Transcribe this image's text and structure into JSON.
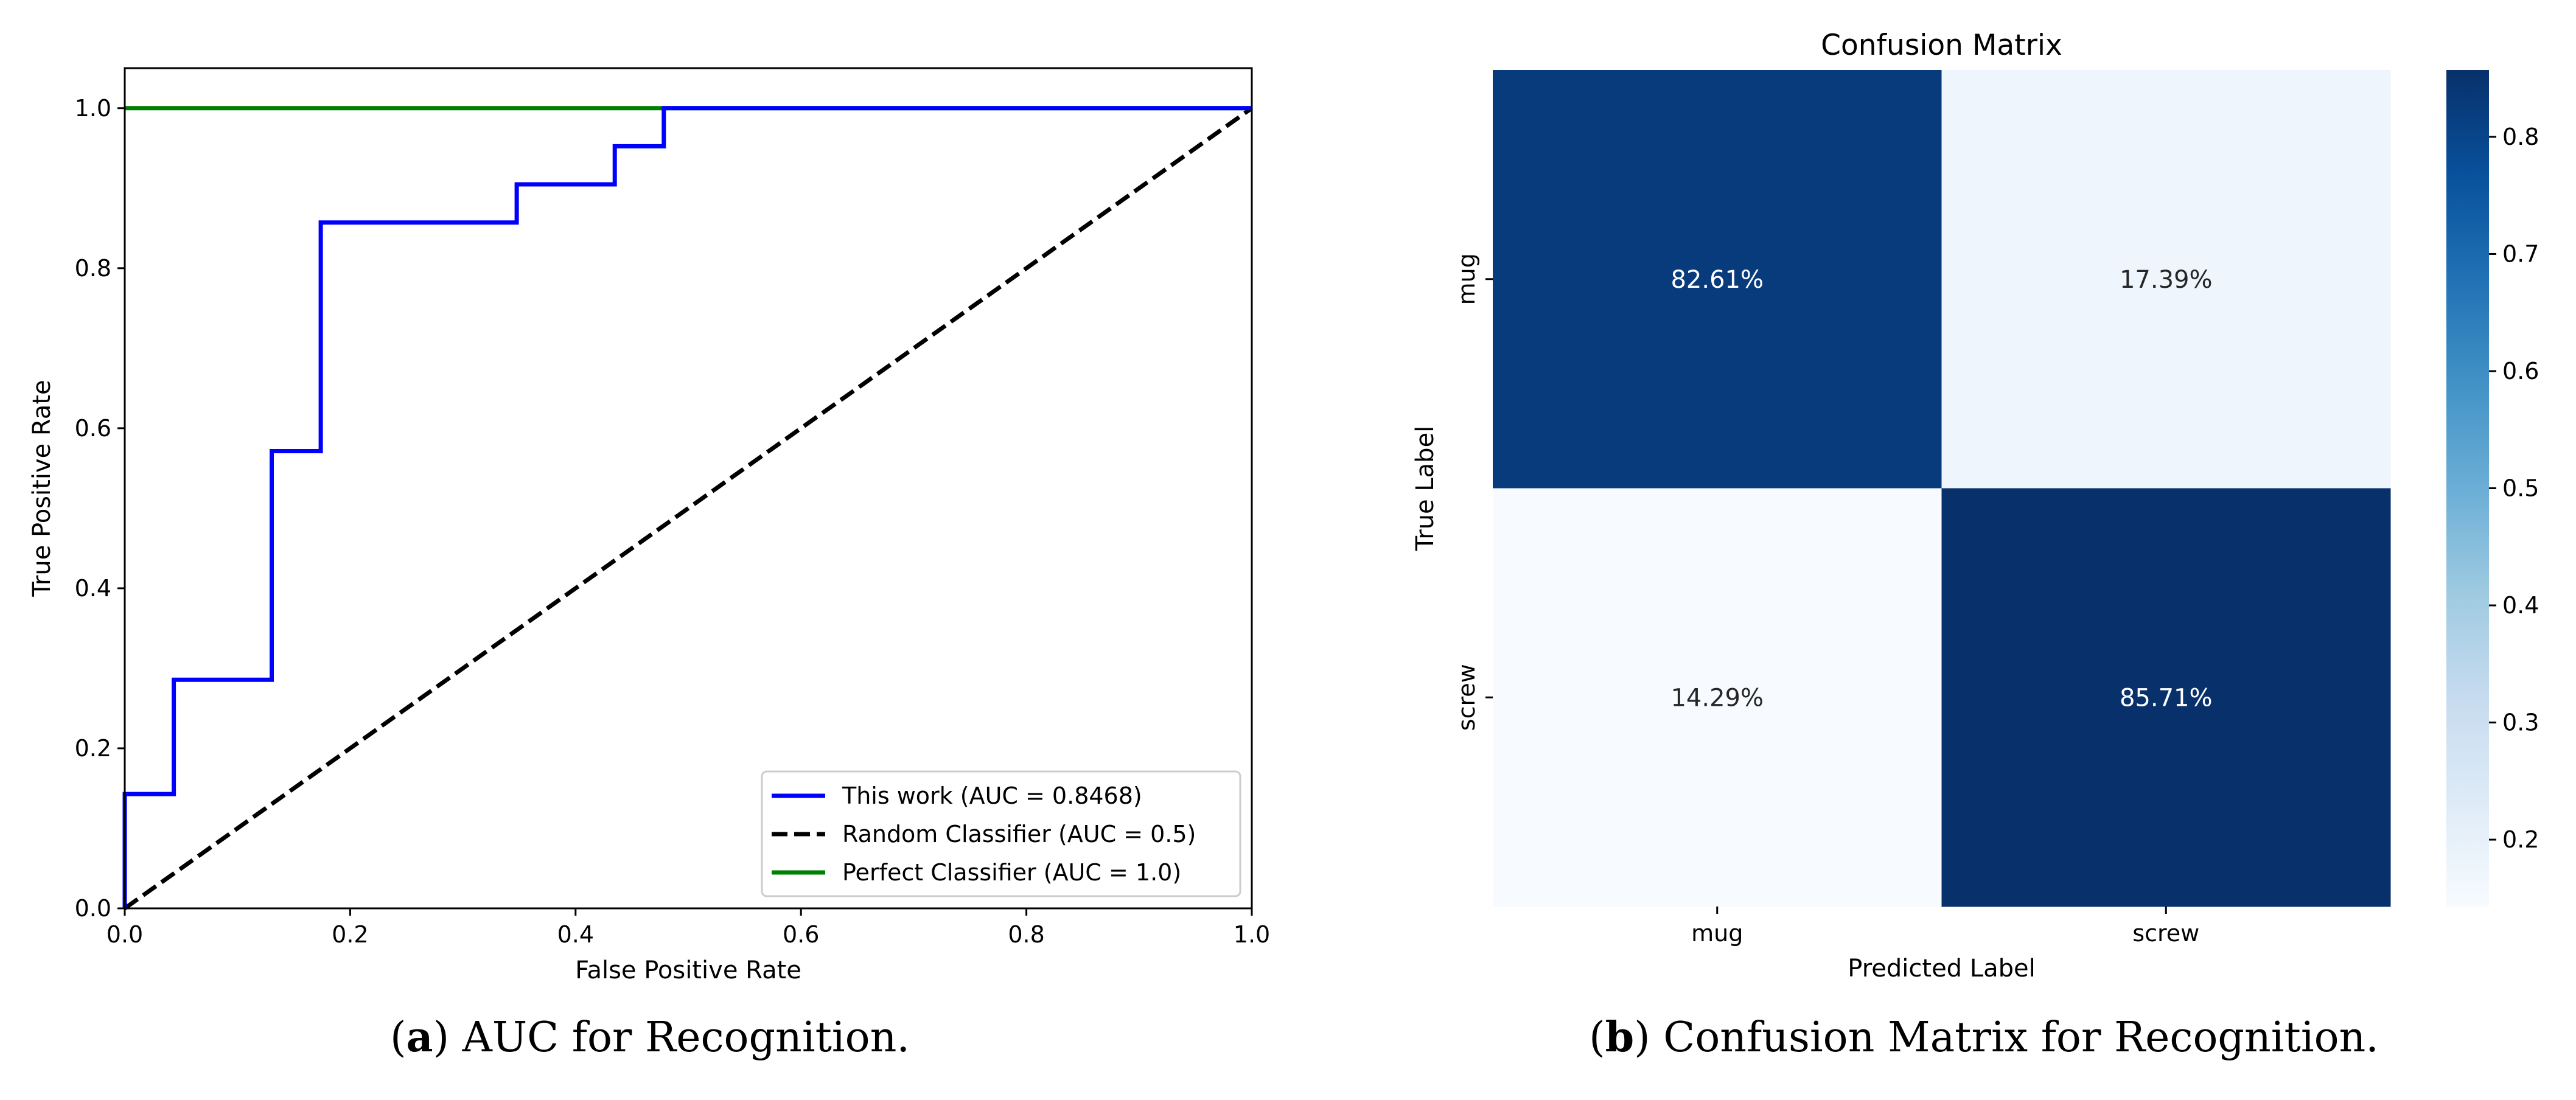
{
  "captions": {
    "a_letter": "a",
    "a_text": " AUC for Recognition.",
    "b_letter": "b",
    "b_text": " Confusion Matrix for Recognition."
  },
  "chart_data": [
    {
      "type": "line",
      "title": "",
      "xlabel": "False Positive Rate",
      "ylabel": "True Positive Rate",
      "xlim": [
        0.0,
        1.0
      ],
      "ylim": [
        0.0,
        1.05
      ],
      "xticks": [
        0.0,
        0.2,
        0.4,
        0.6,
        0.8,
        1.0
      ],
      "yticks": [
        0.0,
        0.2,
        0.4,
        0.6,
        0.8,
        1.0
      ],
      "xtick_labels": [
        "0.0",
        "0.2",
        "0.4",
        "0.6",
        "0.8",
        "1.0"
      ],
      "ytick_labels": [
        "0.0",
        "0.2",
        "0.4",
        "0.6",
        "0.8",
        "1.0"
      ],
      "grid": false,
      "legend_position": "lower-right",
      "series": [
        {
          "name": "This work (AUC = 0.8468)",
          "color": "#0000ff",
          "style": "solid",
          "step": true,
          "x": [
            0.0,
            0.0,
            0.0435,
            0.0435,
            0.1304,
            0.1304,
            0.1739,
            0.1739,
            0.3478,
            0.3478,
            0.4348,
            0.4348,
            0.4783,
            0.4783,
            1.0
          ],
          "y": [
            0.0,
            0.1429,
            0.1429,
            0.2857,
            0.2857,
            0.5714,
            0.5714,
            0.8571,
            0.8571,
            0.9048,
            0.9048,
            0.9524,
            0.9524,
            1.0,
            1.0
          ]
        },
        {
          "name": "Random Classifier (AUC = 0.5)",
          "color": "#000000",
          "style": "dashed",
          "x": [
            0.0,
            1.0
          ],
          "y": [
            0.0,
            1.0
          ]
        },
        {
          "name": "Perfect Classifier (AUC = 1.0)",
          "color": "#008000",
          "style": "solid",
          "x": [
            0.0,
            1.0
          ],
          "y": [
            1.0,
            1.0
          ]
        }
      ]
    },
    {
      "type": "heatmap",
      "title": "Confusion Matrix",
      "xlabel": "Predicted Label",
      "ylabel": "True Label",
      "x_categories": [
        "mug",
        "screw"
      ],
      "y_categories": [
        "mug",
        "screw"
      ],
      "values": [
        [
          0.8261,
          0.1739
        ],
        [
          0.1429,
          0.8571
        ]
      ],
      "annotations": [
        [
          "82.61%",
          "17.39%"
        ],
        [
          "14.29%",
          "85.71%"
        ]
      ],
      "colormap": "Blues",
      "colorbar": {
        "range": [
          0.1429,
          0.8571
        ],
        "ticks": [
          0.2,
          0.3,
          0.4,
          0.5,
          0.6,
          0.7,
          0.8
        ],
        "tick_labels": [
          "0.2",
          "0.3",
          "0.4",
          "0.5",
          "0.6",
          "0.7",
          "0.8"
        ]
      }
    }
  ]
}
